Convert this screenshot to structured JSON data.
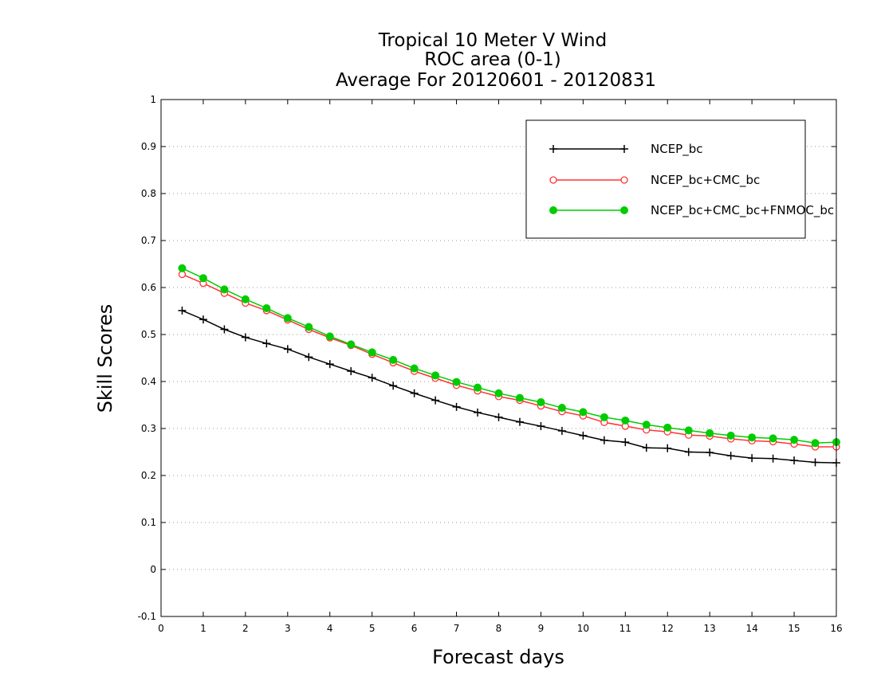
{
  "chart_data": {
    "type": "line",
    "title": [
      "Tropical 10 Meter V Wind",
      "ROC area (0-1)",
      "Average For 20120601 - 20120831"
    ],
    "xlabel": "Forecast days",
    "ylabel": "Skill Scores",
    "xlim": [
      0,
      16
    ],
    "ylim": [
      -0.1,
      1
    ],
    "x_ticks": [
      "0",
      "1",
      "2",
      "3",
      "4",
      "5",
      "6",
      "7",
      "8",
      "9",
      "10",
      "11",
      "12",
      "13",
      "14",
      "15",
      "16"
    ],
    "y_ticks": [
      "-0.1",
      "0",
      "0.1",
      "0.2",
      "0.3",
      "0.4",
      "0.5",
      "0.6",
      "0.7",
      "0.8",
      "0.9",
      "1"
    ],
    "grid": "horizontal dotted",
    "legend_position": "top-right",
    "x": [
      0.5,
      1,
      1.5,
      2,
      2.5,
      3,
      3.5,
      4,
      4.5,
      5,
      5.5,
      6,
      6.5,
      7,
      7.5,
      8,
      8.5,
      9,
      9.5,
      10,
      10.5,
      11,
      11.5,
      12,
      12.5,
      13,
      13.5,
      14,
      14.5,
      15,
      15.5,
      16
    ],
    "series": [
      {
        "name": "NCEP_bc",
        "color": "#000000",
        "marker": "plus",
        "values": [
          0.551,
          0.532,
          0.511,
          0.494,
          0.481,
          0.469,
          0.452,
          0.437,
          0.422,
          0.408,
          0.391,
          0.375,
          0.36,
          0.346,
          0.334,
          0.324,
          0.314,
          0.305,
          0.295,
          0.285,
          0.275,
          0.271,
          0.259,
          0.258,
          0.25,
          0.249,
          0.242,
          0.237,
          0.236,
          0.232,
          0.228,
          0.227
        ]
      },
      {
        "name": "NCEP_bc+CMC_bc",
        "color": "#ff3333",
        "marker": "open-circle",
        "values": [
          0.628,
          0.609,
          0.588,
          0.567,
          0.551,
          0.531,
          0.511,
          0.493,
          0.477,
          0.458,
          0.44,
          0.422,
          0.407,
          0.392,
          0.38,
          0.368,
          0.36,
          0.348,
          0.336,
          0.327,
          0.313,
          0.305,
          0.297,
          0.293,
          0.286,
          0.284,
          0.278,
          0.274,
          0.272,
          0.267,
          0.261,
          0.261
        ]
      },
      {
        "name": "NCEP_bc+CMC_bc+FNMOC_bc",
        "color": "#00cc00",
        "marker": "filled-circle",
        "values": [
          0.641,
          0.62,
          0.596,
          0.575,
          0.556,
          0.535,
          0.516,
          0.496,
          0.479,
          0.462,
          0.446,
          0.428,
          0.413,
          0.399,
          0.387,
          0.375,
          0.365,
          0.356,
          0.344,
          0.335,
          0.324,
          0.317,
          0.308,
          0.302,
          0.296,
          0.29,
          0.285,
          0.281,
          0.279,
          0.276,
          0.269,
          0.271
        ]
      }
    ]
  }
}
